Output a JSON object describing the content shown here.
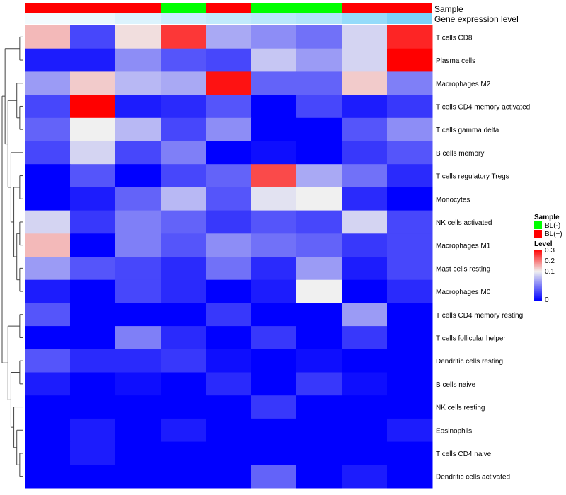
{
  "chart_data": {
    "type": "heatmap",
    "annotation_tracks": [
      "Sample",
      "Gene expression level"
    ],
    "sample_annotation": [
      "BL(+)",
      "BL(+)",
      "BL(+)",
      "BL(-)",
      "BL(+)",
      "BL(-)",
      "BL(-)",
      "BL(+)",
      "BL(+)"
    ],
    "expression_level_annotation": [
      0.07,
      0.12,
      0.2,
      0.3,
      0.35,
      0.4,
      0.45,
      0.6,
      0.75
    ],
    "rows": [
      "T cells CD8",
      "Plasma cells",
      "Macrophages M2",
      "T cells CD4 memory activated",
      "T cells gamma delta",
      "B cells memory",
      "T cells regulatory  Tregs",
      "Monocytes",
      "NK cells activated",
      "Macrophages M1",
      "Mast cells resting",
      "Macrophages M0",
      "T cells CD4 memory resting",
      "T cells follicular helper",
      "Dendritic cells resting",
      "B cells naive",
      "NK cells resting",
      "Eosinophils",
      "T cells CD4 naive",
      "Dendritic cells activated"
    ],
    "values": [
      [
        0.2,
        0.05,
        0.18,
        0.27,
        0.12,
        0.1,
        0.08,
        0.15,
        0.28
      ],
      [
        0.02,
        0.02,
        0.1,
        0.06,
        0.05,
        0.14,
        0.11,
        0.15,
        0.3
      ],
      [
        0.11,
        0.19,
        0.13,
        0.12,
        0.29,
        0.07,
        0.07,
        0.19,
        0.09
      ],
      [
        0.05,
        0.3,
        0.02,
        0.03,
        0.06,
        0.0,
        0.05,
        0.02,
        0.04
      ],
      [
        0.07,
        0.17,
        0.13,
        0.05,
        0.1,
        0.0,
        0.0,
        0.06,
        0.1
      ],
      [
        0.05,
        0.15,
        0.05,
        0.09,
        0.0,
        0.01,
        0.0,
        0.04,
        0.06
      ],
      [
        0.0,
        0.06,
        0.0,
        0.05,
        0.07,
        0.26,
        0.12,
        0.08,
        0.03
      ],
      [
        0.0,
        0.02,
        0.07,
        0.13,
        0.06,
        0.16,
        0.17,
        0.03,
        0.0
      ],
      [
        0.15,
        0.04,
        0.09,
        0.07,
        0.04,
        0.06,
        0.05,
        0.15,
        0.05
      ],
      [
        0.2,
        0.0,
        0.09,
        0.06,
        0.1,
        0.08,
        0.07,
        0.04,
        0.05
      ],
      [
        0.11,
        0.06,
        0.05,
        0.03,
        0.08,
        0.03,
        0.11,
        0.02,
        0.05
      ],
      [
        0.02,
        0.0,
        0.05,
        0.03,
        0.0,
        0.02,
        0.17,
        0.0,
        0.03
      ],
      [
        0.06,
        0.0,
        0.0,
        0.0,
        0.04,
        0.0,
        0.0,
        0.11,
        0.0
      ],
      [
        0.0,
        0.0,
        0.09,
        0.03,
        0.0,
        0.04,
        0.0,
        0.04,
        0.0
      ],
      [
        0.06,
        0.03,
        0.03,
        0.04,
        0.01,
        0.0,
        0.01,
        0.0,
        0.0
      ],
      [
        0.02,
        0.0,
        0.01,
        0.0,
        0.03,
        0.0,
        0.04,
        0.01,
        0.0
      ],
      [
        0.0,
        0.0,
        0.0,
        0.0,
        0.0,
        0.04,
        0.0,
        0.0,
        0.0
      ],
      [
        0.0,
        0.02,
        0.0,
        0.02,
        0.0,
        0.0,
        0.0,
        0.0,
        0.02
      ],
      [
        0.0,
        0.02,
        0.0,
        0.0,
        0.0,
        0.0,
        0.0,
        0.0,
        0.0
      ],
      [
        0.0,
        0.0,
        0.0,
        0.0,
        0.0,
        0.07,
        0.0,
        0.02,
        0.0
      ]
    ],
    "color_scale": {
      "low": "#0000FF",
      "mid": "#F0F0F0",
      "high": "#FF0000",
      "min": 0,
      "mid_value": 0.17,
      "max": 0.3
    },
    "legend": {
      "sample_title": "Sample",
      "sample_entries": [
        {
          "label": "BL(-)",
          "color": "#00FF00"
        },
        {
          "label": "BL(+)",
          "color": "#FF0000"
        }
      ],
      "level_title": "Level",
      "level_ticks": [
        "0.3",
        "0.2",
        "0.1",
        "0"
      ],
      "placement": "right"
    },
    "dendrogram": "rows"
  }
}
